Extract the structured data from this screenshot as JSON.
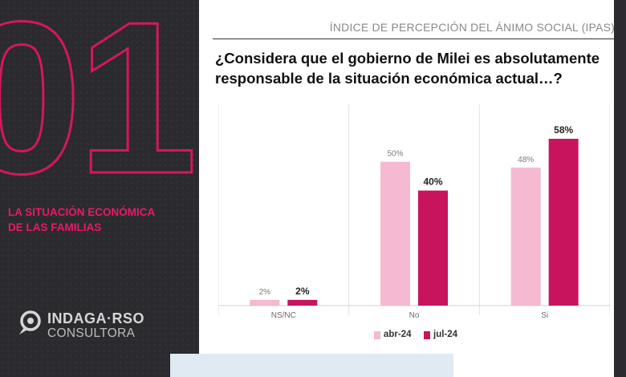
{
  "section": {
    "number": "01",
    "title_line1": "LA SITUACIÓN ECONÓMICA",
    "title_line2": "DE LAS FAMILIAS"
  },
  "brand": {
    "name": "INDAGA·RSO",
    "subtitle": "CONSULTORA",
    "logo_icon": "speech-bubble-magnifier-icon"
  },
  "header": {
    "label": "ÍNDICE DE PERCEPCIÓN DEL ÁNIMO SOCIAL (IPAS)",
    "question": "¿Considera que el gobierno de Milei es absolutamente responsable de la situación económica actual…?"
  },
  "colors": {
    "accent": "#e8196a",
    "series_1": "#f5b9d1",
    "series_2": "#c8145c",
    "dark_panel": "#2b2a2e"
  },
  "chart_data": {
    "type": "bar",
    "categories": [
      "NS/NC",
      "No",
      "Si"
    ],
    "series": [
      {
        "name": "abr-24",
        "values": [
          2,
          50,
          48
        ],
        "labels": [
          "2%",
          "50%",
          "48%"
        ]
      },
      {
        "name": "jul-24",
        "values": [
          2,
          40,
          58
        ],
        "labels": [
          "2%",
          "40%",
          "58%"
        ]
      }
    ],
    "ylim": [
      0,
      70
    ],
    "grid": false,
    "legend_position": "bottom"
  }
}
